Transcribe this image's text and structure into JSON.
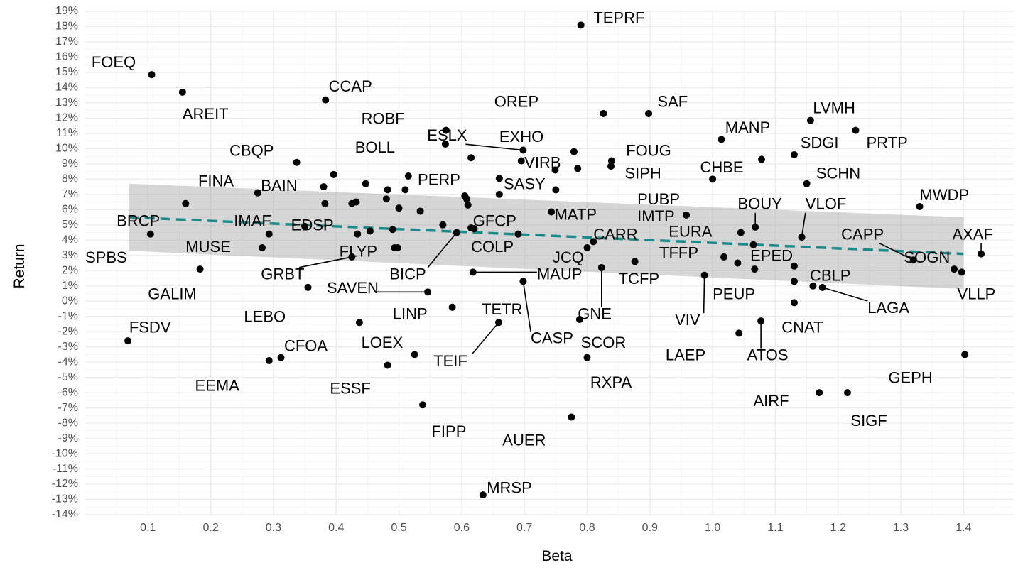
{
  "chart_data": {
    "type": "scatter",
    "title": "",
    "xlabel": "Beta",
    "ylabel": "Return",
    "xlim": [
      0.0,
      1.48
    ],
    "ylim": [
      -14,
      19
    ],
    "x_ticks": [
      0.1,
      0.2,
      0.3,
      0.4,
      0.5,
      0.6,
      0.7,
      0.8,
      0.9,
      1.0,
      1.1,
      1.2,
      1.3,
      1.4
    ],
    "x_tick_labels": [
      "0.1",
      "0.2",
      "0.3",
      "0.4",
      "0.5",
      "0.6",
      "0.7",
      "0.8",
      "0.9",
      "1.0",
      "1.1",
      "1.2",
      "1.3",
      "1.4"
    ],
    "y_ticks": [
      19,
      18,
      17,
      16,
      15,
      14,
      13,
      12,
      11,
      10,
      9,
      8,
      7,
      6,
      5,
      4,
      3,
      2,
      1,
      0,
      -1,
      -2,
      -3,
      -4,
      -5,
      -6,
      -7,
      -8,
      -9,
      -10,
      -11,
      -12,
      -13,
      -14
    ],
    "y_tick_labels": [
      "19%",
      "18%",
      "17%",
      "16%",
      "15%",
      "14%",
      "13%",
      "12%",
      "11%",
      "10%",
      "9%",
      "8%",
      "7%",
      "6%",
      "5%",
      "4%",
      "3%",
      "2%",
      "1%",
      "0%",
      "-1%",
      "-2%",
      "-3%",
      "-4%",
      "-5%",
      "-6%",
      "-7%",
      "-8%",
      "-9%",
      "-10%",
      "-11%",
      "-12%",
      "-13%",
      "-14%"
    ],
    "grid": true,
    "legend": "none",
    "trend_color": "#1a8a8a",
    "band_color": "#999999",
    "point_color": "#000000",
    "trend": {
      "x": [
        0.07,
        1.4
      ],
      "y": [
        5.5,
        3.1
      ]
    },
    "band": {
      "x": [
        0.07,
        1.4
      ],
      "upper": [
        7.7,
        5.5
      ],
      "lower": [
        3.3,
        0.8
      ]
    },
    "points": [
      {
        "label": "TEPRF",
        "x": 0.79,
        "y": 18.1,
        "lx": 0.81,
        "ly": 18.5
      },
      {
        "label": "FOEQ",
        "x": 0.106,
        "y": 14.85,
        "lx": 0.01,
        "ly": 15.6
      },
      {
        "label": "AREIT",
        "x": 0.155,
        "y": 13.7,
        "lx": 0.155,
        "ly": 12.2
      },
      {
        "label": "CCAP",
        "x": 0.383,
        "y": 13.2,
        "lx": 0.388,
        "ly": 14.0
      },
      {
        "label": "OREP",
        "x": 0.826,
        "y": 12.3,
        "lx": 0.652,
        "ly": 13.0
      },
      {
        "label": "SAF",
        "x": 0.898,
        "y": 12.3,
        "lx": 0.912,
        "ly": 13.0
      },
      {
        "label": "LVMH",
        "x": 1.156,
        "y": 11.85,
        "lx": 1.16,
        "ly": 12.6
      },
      {
        "label": "ROBF",
        "x": 0.575,
        "y": 11.2,
        "lx": 0.44,
        "ly": 11.9
      },
      {
        "label": "PRTP",
        "x": 1.228,
        "y": 11.2,
        "lx": 1.245,
        "ly": 10.3
      },
      {
        "label": "ESLX",
        "x": 0.698,
        "y": 9.9,
        "lx": 0.545,
        "ly": 10.8,
        "lead": true
      },
      {
        "label": "EXHO",
        "x": 0.779,
        "y": 9.8,
        "lx": 0.66,
        "ly": 10.7
      },
      {
        "label": "MANP",
        "x": 1.014,
        "y": 10.6,
        "lx": 1.02,
        "ly": 11.3
      },
      {
        "label": "BOLL",
        "x": 0.574,
        "y": 10.3,
        "lx": 0.43,
        "ly": 10.0
      },
      {
        "label": "SDGI",
        "x": 1.13,
        "y": 9.6,
        "lx": 1.14,
        "ly": 10.3
      },
      {
        "label": "FOUG",
        "x": 0.839,
        "y": 9.2,
        "lx": 0.862,
        "ly": 9.8
      },
      {
        "label": "CBQP",
        "x": 0.337,
        "y": 9.1,
        "lx": 0.23,
        "ly": 9.8
      },
      {
        "label": "VIRB",
        "x": 0.695,
        "y": 9.2,
        "lx": 0.7,
        "ly": 9.0
      },
      {
        "label": "SIPH",
        "x": 0.838,
        "y": 8.85,
        "lx": 0.86,
        "ly": 8.3
      },
      {
        "label": "CHBE",
        "x": 1.078,
        "y": 9.3,
        "lx": 0.98,
        "ly": 8.7
      },
      {
        "label": "SCHN",
        "x": 1.15,
        "y": 7.7,
        "lx": 1.165,
        "ly": 8.3
      },
      {
        "label": "BAIN",
        "x": 0.396,
        "y": 8.3,
        "lx": 0.28,
        "ly": 7.5
      },
      {
        "label": "FINA",
        "x": 0.275,
        "y": 7.1,
        "lx": 0.18,
        "ly": 7.8
      },
      {
        "label": "PERP",
        "x": 0.515,
        "y": 8.2,
        "lx": 0.53,
        "ly": 7.9
      },
      {
        "label": "SASY",
        "x": 0.66,
        "y": 8.05,
        "lx": 0.667,
        "ly": 7.6
      },
      {
        "label": "PUBP",
        "x": 1.0,
        "y": 8.0,
        "lx": 0.88,
        "ly": 6.6
      },
      {
        "label": "BOUY",
        "x": 1.068,
        "y": 4.85,
        "lx": 1.04,
        "ly": 6.3,
        "lead": true
      },
      {
        "label": "VLOF",
        "x": 1.142,
        "y": 4.2,
        "lx": 1.148,
        "ly": 6.3,
        "lead": true
      },
      {
        "label": "MWDP",
        "x": 1.33,
        "y": 6.2,
        "lx": 1.33,
        "ly": 6.9
      },
      {
        "label": "MATP",
        "x": 0.743,
        "y": 5.85,
        "lx": 0.748,
        "ly": 5.6
      },
      {
        "label": "IMTP",
        "x": 0.958,
        "y": 5.65,
        "lx": 0.88,
        "ly": 5.5
      },
      {
        "label": "GFCP",
        "x": 0.615,
        "y": 4.8,
        "lx": 0.618,
        "ly": 5.2
      },
      {
        "label": "BRCP",
        "x": 0.16,
        "y": 6.4,
        "lx": 0.05,
        "ly": 5.2
      },
      {
        "label": "IMAF",
        "x": 0.293,
        "y": 4.4,
        "lx": 0.237,
        "ly": 5.2
      },
      {
        "label": "EDSP",
        "x": 0.35,
        "y": 4.9,
        "lx": 0.328,
        "ly": 4.9
      },
      {
        "label": "EURA",
        "x": 1.045,
        "y": 4.5,
        "lx": 0.93,
        "ly": 4.5
      },
      {
        "label": "CARR",
        "x": 0.81,
        "y": 3.9,
        "lx": 0.81,
        "ly": 4.3
      },
      {
        "label": "CAPP",
        "x": 1.32,
        "y": 2.7,
        "lx": 1.205,
        "ly": 4.3,
        "lead": true
      },
      {
        "label": "AXAF",
        "x": 1.428,
        "y": 3.1,
        "lx": 1.382,
        "ly": 4.3,
        "lead": true
      },
      {
        "label": "SPBS",
        "x": 0.104,
        "y": 4.4,
        "lx": 0.0,
        "ly": 2.8
      },
      {
        "label": "MUSE",
        "x": 0.282,
        "y": 3.5,
        "lx": 0.16,
        "ly": 3.5
      },
      {
        "label": "FLYP",
        "x": 0.493,
        "y": 3.5,
        "lx": 0.405,
        "ly": 3.2
      },
      {
        "label": "COLP",
        "x": 0.69,
        "y": 4.4,
        "lx": 0.615,
        "ly": 3.5
      },
      {
        "label": "EPED",
        "x": 1.065,
        "y": 3.7,
        "lx": 1.06,
        "ly": 2.9
      },
      {
        "label": "TFFP",
        "x": 1.018,
        "y": 2.9,
        "lx": 0.915,
        "ly": 3.1
      },
      {
        "label": "SOGN",
        "x": 1.385,
        "y": 2.1,
        "lx": 1.305,
        "ly": 2.8
      },
      {
        "label": "JCQ",
        "x": 0.8,
        "y": 3.5,
        "lx": 0.745,
        "ly": 2.8
      },
      {
        "label": "GRBT",
        "x": 0.425,
        "y": 2.9,
        "lx": 0.28,
        "ly": 1.7,
        "lead": true
      },
      {
        "label": "BICP",
        "x": 0.592,
        "y": 4.5,
        "lx": 0.485,
        "ly": 1.7,
        "lead": true
      },
      {
        "label": "MAUP",
        "x": 0.618,
        "y": 1.9,
        "lx": 0.72,
        "ly": 1.7,
        "lead": true
      },
      {
        "label": "TCFP",
        "x": 0.876,
        "y": 2.6,
        "lx": 0.85,
        "ly": 1.4
      },
      {
        "label": "CBLP",
        "x": 1.16,
        "y": 1.0,
        "lx": 1.155,
        "ly": 1.6
      },
      {
        "label": "VLLP",
        "x": 1.397,
        "y": 1.9,
        "lx": 1.39,
        "ly": 0.4
      },
      {
        "label": "GALIM",
        "x": 0.183,
        "y": 2.1,
        "lx": 0.1,
        "ly": 0.4
      },
      {
        "label": "SAVEN",
        "x": 0.546,
        "y": 0.6,
        "lx": 0.385,
        "ly": 0.8,
        "lead": true
      },
      {
        "label": "PEUP",
        "x": 1.067,
        "y": 2.1,
        "lx": 1.0,
        "ly": 0.4
      },
      {
        "label": "LAGA",
        "x": 1.175,
        "y": 0.9,
        "lx": 1.247,
        "ly": -0.5,
        "lead": true
      },
      {
        "label": "LEBO",
        "x": 0.355,
        "y": 0.9,
        "lx": 0.253,
        "ly": -1.1
      },
      {
        "label": "VIV",
        "x": 0.987,
        "y": 1.7,
        "lx": 0.94,
        "ly": -1.3,
        "lead": true
      },
      {
        "label": "TETR",
        "x": 0.585,
        "y": -0.4,
        "lx": 0.632,
        "ly": -0.6
      },
      {
        "label": "CASP",
        "x": 0.698,
        "y": 1.3,
        "lx": 0.71,
        "ly": -2.5,
        "lead": true
      },
      {
        "label": "GNE",
        "x": 0.823,
        "y": 2.2,
        "lx": 0.785,
        "ly": -0.9,
        "lead": true
      },
      {
        "label": "CNAT",
        "x": 1.13,
        "y": -0.1,
        "lx": 1.11,
        "ly": -1.8
      },
      {
        "label": "LINP",
        "x": 0.437,
        "y": -1.4,
        "lx": 0.49,
        "ly": -0.9
      },
      {
        "label": "SCOR",
        "x": 0.788,
        "y": -1.2,
        "lx": 0.79,
        "ly": -2.8
      },
      {
        "label": "ATOS",
        "x": 1.077,
        "y": -1.3,
        "lx": 1.055,
        "ly": -3.6,
        "lead": true
      },
      {
        "label": "LAEP",
        "x": 1.042,
        "y": -2.1,
        "lx": 0.925,
        "ly": -3.6
      },
      {
        "label": "FSDV",
        "x": 0.068,
        "y": -2.6,
        "lx": 0.07,
        "ly": -1.8
      },
      {
        "label": "TEIF",
        "x": 0.659,
        "y": -1.4,
        "lx": 0.555,
        "ly": -4.0,
        "lead": true
      },
      {
        "label": "CFOA",
        "x": 0.312,
        "y": -3.7,
        "lx": 0.317,
        "ly": -3.0
      },
      {
        "label": "LOEX",
        "x": 0.525,
        "y": -3.5,
        "lx": 0.44,
        "ly": -2.8
      },
      {
        "label": "GEPH",
        "x": 1.402,
        "y": -3.5,
        "lx": 1.28,
        "ly": -5.1
      },
      {
        "label": "EEMA",
        "x": 0.293,
        "y": -3.9,
        "lx": 0.175,
        "ly": -5.6
      },
      {
        "label": "RXPA",
        "x": 0.8,
        "y": -3.7,
        "lx": 0.805,
        "ly": -5.4
      },
      {
        "label": "ESSF",
        "x": 0.482,
        "y": -4.2,
        "lx": 0.39,
        "ly": -5.8
      },
      {
        "label": "AIRF",
        "x": 1.17,
        "y": -6.0,
        "lx": 1.065,
        "ly": -6.6
      },
      {
        "label": "SIGF",
        "x": 1.215,
        "y": -6.0,
        "lx": 1.22,
        "ly": -7.9
      },
      {
        "label": "FIPP",
        "x": 0.538,
        "y": -6.8,
        "lx": 0.552,
        "ly": -8.6
      },
      {
        "label": "AUER",
        "x": 0.775,
        "y": -7.6,
        "lx": 0.665,
        "ly": -9.2
      },
      {
        "label": "MRSP",
        "x": 0.634,
        "y": -12.7,
        "lx": 0.64,
        "ly": -12.3
      },
      {
        "x": 0.38,
        "y": 7.5
      },
      {
        "x": 0.382,
        "y": 6.4
      },
      {
        "x": 0.425,
        "y": 6.4
      },
      {
        "x": 0.432,
        "y": 6.5
      },
      {
        "x": 0.447,
        "y": 7.7
      },
      {
        "x": 0.482,
        "y": 7.3
      },
      {
        "x": 0.48,
        "y": 6.7
      },
      {
        "x": 0.5,
        "y": 6.1
      },
      {
        "x": 0.51,
        "y": 7.3
      },
      {
        "x": 0.534,
        "y": 5.9
      },
      {
        "x": 0.434,
        "y": 4.4
      },
      {
        "x": 0.454,
        "y": 4.6
      },
      {
        "x": 0.49,
        "y": 4.7
      },
      {
        "x": 0.57,
        "y": 5.0
      },
      {
        "x": 0.605,
        "y": 6.9
      },
      {
        "x": 0.608,
        "y": 6.7
      },
      {
        "x": 0.61,
        "y": 6.3
      },
      {
        "x": 0.615,
        "y": 9.4
      },
      {
        "x": 0.66,
        "y": 7.0
      },
      {
        "x": 0.749,
        "y": 8.6
      },
      {
        "x": 0.75,
        "y": 7.3
      },
      {
        "x": 0.785,
        "y": 8.7
      },
      {
        "x": 0.62,
        "y": 4.75
      },
      {
        "x": 0.498,
        "y": 3.5
      },
      {
        "x": 1.04,
        "y": 2.5
      },
      {
        "x": 1.13,
        "y": 2.3
      },
      {
        "x": 1.13,
        "y": 1.3
      }
    ]
  }
}
